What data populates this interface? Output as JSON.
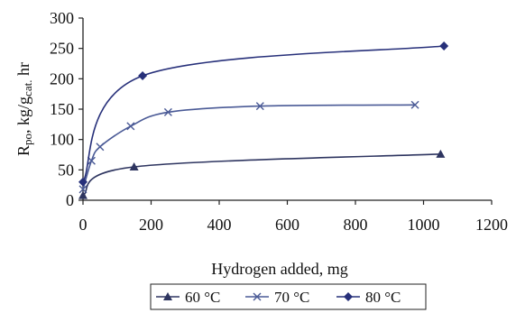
{
  "chart_data": {
    "type": "line",
    "xlabel": "Hydrogen added, mg",
    "ylabel": {
      "main": "R",
      "sub": "po",
      "mid": ", kg/g",
      "sub2": "cat.",
      "end": " hr"
    },
    "xlim": [
      0,
      1200
    ],
    "ylim": [
      0,
      300
    ],
    "x_ticks": [
      "0",
      "200",
      "400",
      "600",
      "800",
      "1000",
      "1200"
    ],
    "y_ticks": [
      "0",
      "50",
      "100",
      "150",
      "200",
      "250",
      "300"
    ],
    "grid": false,
    "legend_position": "bottom",
    "series": [
      {
        "name": "60 °C",
        "marker": "triangle",
        "color": "#2e3560",
        "points": [
          [
            0,
            8
          ],
          [
            150,
            55
          ],
          [
            1050,
            76
          ]
        ]
      },
      {
        "name": "70 °C",
        "marker": "x",
        "color": "#4a5a96",
        "points": [
          [
            0,
            18
          ],
          [
            25,
            65
          ],
          [
            50,
            88
          ],
          [
            140,
            122
          ],
          [
            250,
            145
          ],
          [
            520,
            155
          ],
          [
            975,
            157
          ]
        ]
      },
      {
        "name": "80 °C",
        "marker": "diamond",
        "color": "#27307a",
        "points": [
          [
            0,
            30
          ],
          [
            175,
            205
          ],
          [
            1060,
            254
          ]
        ]
      }
    ]
  }
}
